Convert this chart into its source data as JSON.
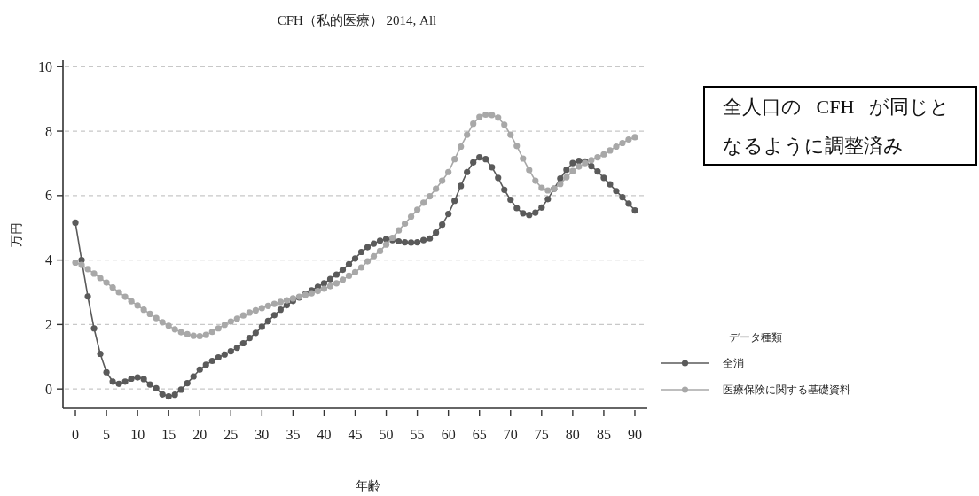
{
  "chart_data": {
    "type": "line",
    "title": "CFH（私的医療） 2014, All",
    "xlabel": "年齢",
    "ylabel": "万円",
    "legend_title": "データ種類",
    "annotations": [
      "全人口の CFH が同じとなるように調整済み"
    ],
    "x": [
      0,
      1,
      2,
      3,
      4,
      5,
      6,
      7,
      8,
      9,
      10,
      11,
      12,
      13,
      14,
      15,
      16,
      17,
      18,
      19,
      20,
      21,
      22,
      23,
      24,
      25,
      26,
      27,
      28,
      29,
      30,
      31,
      32,
      33,
      34,
      35,
      36,
      37,
      38,
      39,
      40,
      41,
      42,
      43,
      44,
      45,
      46,
      47,
      48,
      49,
      50,
      51,
      52,
      53,
      54,
      55,
      56,
      57,
      58,
      59,
      60,
      61,
      62,
      63,
      64,
      65,
      66,
      67,
      68,
      69,
      70,
      71,
      72,
      73,
      74,
      75,
      76,
      77,
      78,
      79,
      80,
      81,
      82,
      83,
      84,
      85,
      86,
      87,
      88,
      89,
      90
    ],
    "xlim": [
      -2,
      92
    ],
    "xticks": [
      0,
      5,
      10,
      15,
      20,
      25,
      30,
      35,
      40,
      45,
      50,
      55,
      60,
      65,
      70,
      75,
      80,
      85,
      90
    ],
    "ylim": [
      -0.6,
      10.2
    ],
    "yticks": [
      0,
      2,
      4,
      6,
      8,
      10
    ],
    "grid": "y",
    "legend": "bottom right",
    "marker": "circle",
    "line_style": "solid",
    "series": [
      {
        "name": "全消",
        "color": "#5a5a5a",
        "values": [
          5.16,
          4.0,
          2.87,
          1.88,
          1.09,
          0.52,
          0.23,
          0.16,
          0.23,
          0.32,
          0.36,
          0.31,
          0.14,
          0.02,
          -0.17,
          -0.23,
          -0.18,
          -0.02,
          0.18,
          0.39,
          0.6,
          0.75,
          0.87,
          0.98,
          1.07,
          1.17,
          1.28,
          1.42,
          1.58,
          1.74,
          1.93,
          2.11,
          2.29,
          2.46,
          2.6,
          2.73,
          2.84,
          2.95,
          3.06,
          3.17,
          3.28,
          3.41,
          3.55,
          3.7,
          3.87,
          4.05,
          4.25,
          4.4,
          4.51,
          4.6,
          4.65,
          4.62,
          4.58,
          4.55,
          4.54,
          4.55,
          4.62,
          4.67,
          4.85,
          5.1,
          5.43,
          5.84,
          6.3,
          6.73,
          7.03,
          7.19,
          7.13,
          6.88,
          6.55,
          6.18,
          5.87,
          5.61,
          5.45,
          5.4,
          5.47,
          5.63,
          5.89,
          6.21,
          6.53,
          6.8,
          7.01,
          7.08,
          7.06,
          6.91,
          6.75,
          6.55,
          6.35,
          6.14,
          5.95,
          5.75,
          5.54
        ]
      },
      {
        "name": "医療保険に関する基礎資料",
        "color": "#a8a8a8",
        "values": [
          3.92,
          3.85,
          3.72,
          3.58,
          3.44,
          3.3,
          3.15,
          3.0,
          2.86,
          2.72,
          2.59,
          2.46,
          2.33,
          2.2,
          2.07,
          1.96,
          1.85,
          1.76,
          1.7,
          1.65,
          1.64,
          1.68,
          1.77,
          1.88,
          1.99,
          2.09,
          2.18,
          2.28,
          2.37,
          2.44,
          2.51,
          2.58,
          2.64,
          2.7,
          2.75,
          2.81,
          2.86,
          2.92,
          2.97,
          3.04,
          3.11,
          3.19,
          3.28,
          3.39,
          3.51,
          3.62,
          3.77,
          3.96,
          4.12,
          4.28,
          4.48,
          4.69,
          4.92,
          5.13,
          5.35,
          5.56,
          5.78,
          5.98,
          6.21,
          6.46,
          6.73,
          7.13,
          7.52,
          7.89,
          8.23,
          8.44,
          8.51,
          8.5,
          8.42,
          8.2,
          7.89,
          7.54,
          7.15,
          6.79,
          6.46,
          6.24,
          6.16,
          6.21,
          6.36,
          6.57,
          6.76,
          6.9,
          7.01,
          7.1,
          7.19,
          7.28,
          7.4,
          7.52,
          7.63,
          7.74,
          7.81
        ]
      }
    ]
  }
}
